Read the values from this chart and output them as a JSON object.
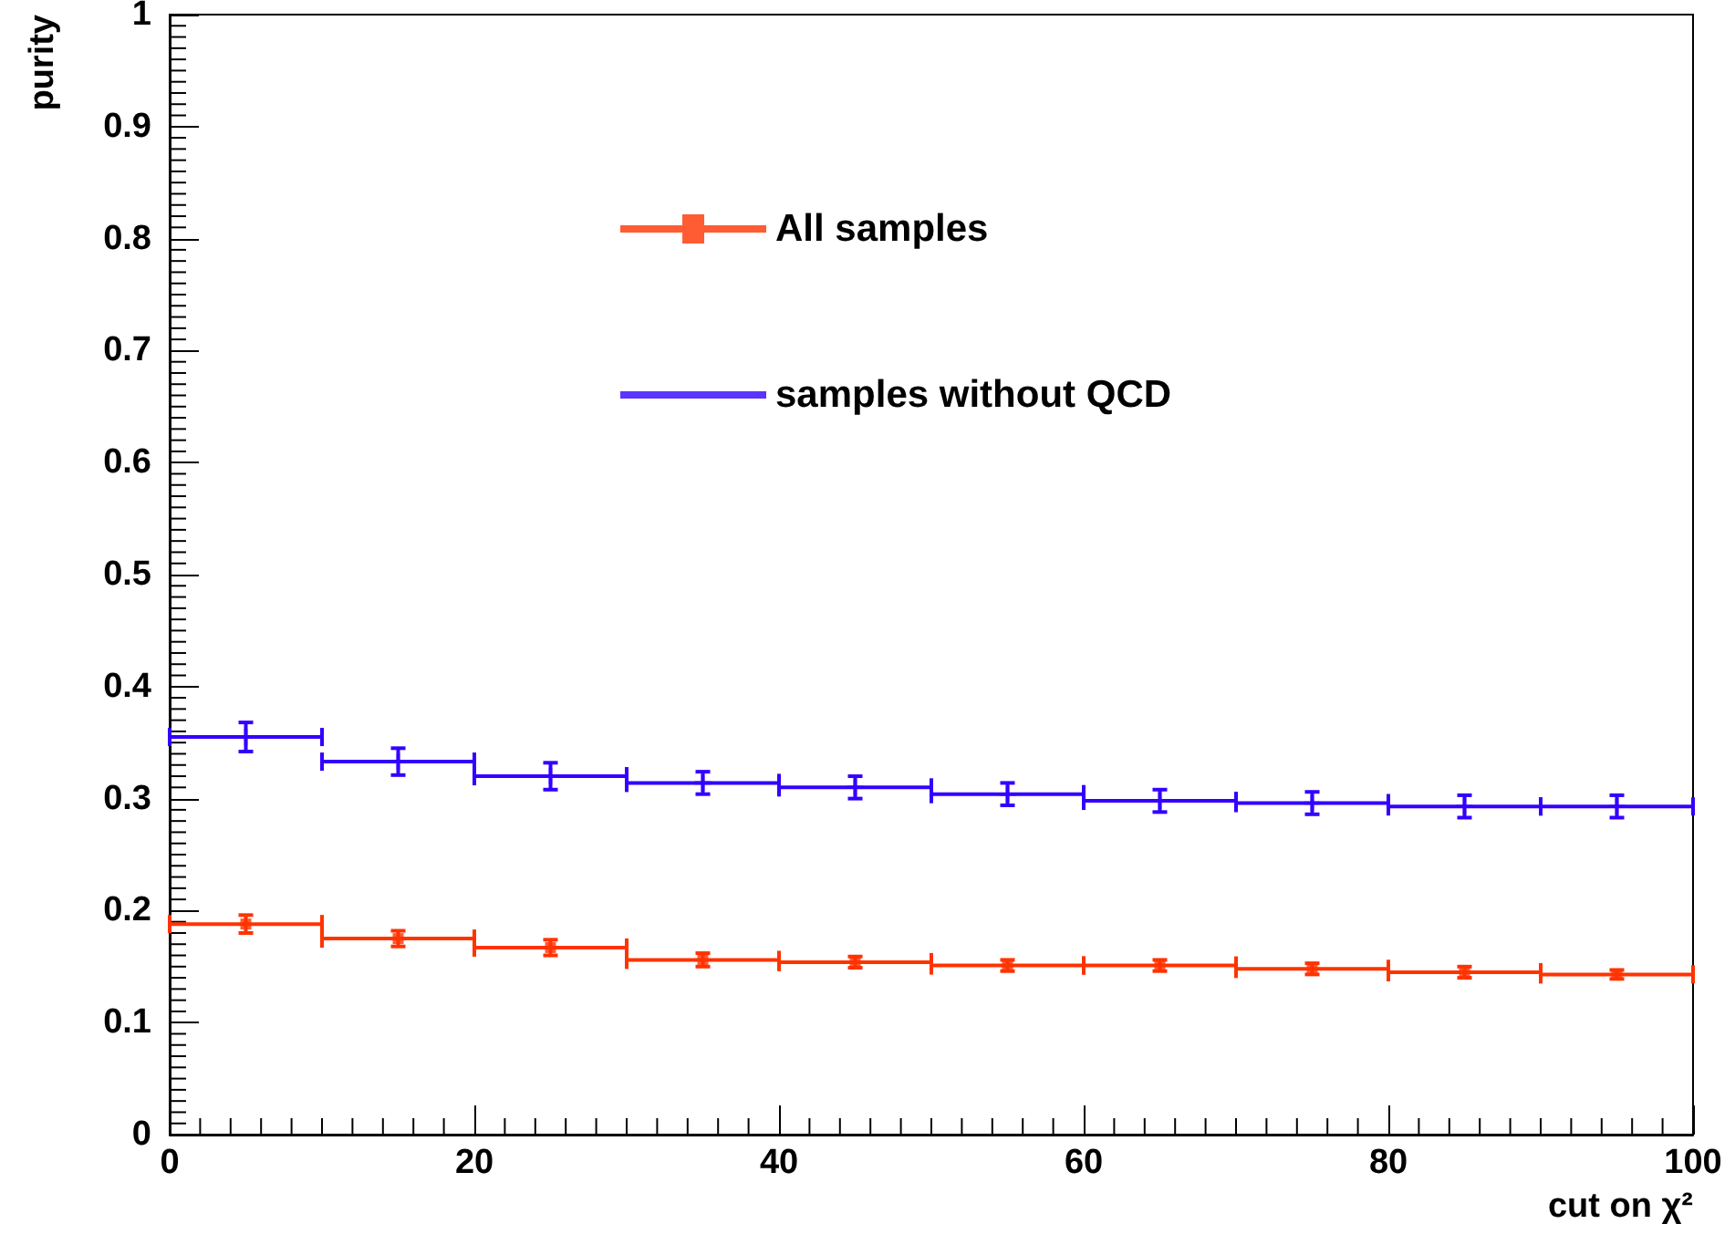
{
  "chart_data": {
    "type": "scatter",
    "xlabel": "cut on χ²",
    "ylabel": "purity",
    "x": [
      5,
      15,
      25,
      35,
      45,
      55,
      65,
      75,
      85,
      95
    ],
    "series": [
      {
        "name": "All samples",
        "color": "#ff3300",
        "marker": "square",
        "values": [
          0.188,
          0.175,
          0.167,
          0.156,
          0.154,
          0.151,
          0.151,
          0.148,
          0.145,
          0.143
        ],
        "errors": [
          0.008,
          0.007,
          0.007,
          0.006,
          0.005,
          0.005,
          0.005,
          0.005,
          0.005,
          0.004
        ],
        "xerrors": [
          5,
          5,
          5,
          5,
          5,
          5,
          5,
          5,
          5,
          5
        ]
      },
      {
        "name": "samples without QCD",
        "color": "#3300ff",
        "marker": "cross",
        "values": [
          0.355,
          0.333,
          0.32,
          0.314,
          0.31,
          0.304,
          0.298,
          0.296,
          0.293,
          0.293
        ],
        "errors": [
          0.013,
          0.012,
          0.012,
          0.01,
          0.01,
          0.01,
          0.01,
          0.01,
          0.01,
          0.01
        ],
        "xerrors": [
          5,
          5,
          5,
          5,
          5,
          5,
          5,
          5,
          5,
          5
        ]
      }
    ],
    "xlim": [
      0,
      100
    ],
    "xticks": [
      0,
      20,
      40,
      60,
      80,
      100
    ],
    "ylim": [
      0,
      1
    ],
    "yticks": [
      0,
      0.1,
      0.2,
      0.3,
      0.4,
      0.5,
      0.6,
      0.7,
      0.8,
      0.9,
      1
    ],
    "grid": false,
    "legend": "top"
  }
}
